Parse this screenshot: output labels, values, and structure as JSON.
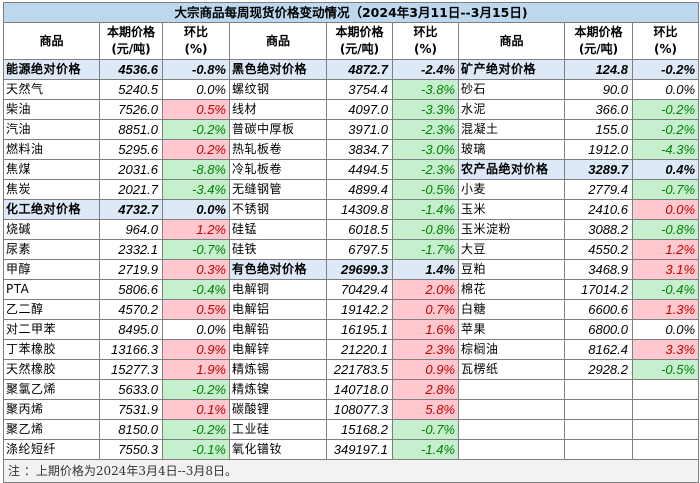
{
  "title": "大宗商品每周现货价格变动情况（2024年3月11日--3月15日)",
  "headers": {
    "name": "商品",
    "price_l1": "本期价格",
    "price_l2": "(元/吨)",
    "pct_l1": "环比",
    "pct_l2": "(%)"
  },
  "colors": {
    "title_bg": "#bdd7ee",
    "group_bg": "#dde9f6",
    "up_bg": "#ffc7ce",
    "up_text": "#c00000",
    "down_bg": "#c6efce",
    "down_text": "#008000"
  },
  "rows": [
    [
      {
        "n": "能源绝对价格",
        "p": "4536.6",
        "c": "-0.8%",
        "t": "group"
      },
      {
        "n": "黑色绝对价格",
        "p": "4872.7",
        "c": "-2.4%",
        "t": "group"
      },
      {
        "n": "矿产绝对价格",
        "p": "124.8",
        "c": "-0.2%",
        "t": "group"
      }
    ],
    [
      {
        "n": "天然气",
        "p": "5240.5",
        "c": "0.0%",
        "t": "flat"
      },
      {
        "n": "螺纹钢",
        "p": "3754.4",
        "c": "-3.8%",
        "t": "down"
      },
      {
        "n": "砂石",
        "p": "90.0",
        "c": "0.0%",
        "t": "flat"
      }
    ],
    [
      {
        "n": "柴油",
        "p": "7526.0",
        "c": "0.5%",
        "t": "up"
      },
      {
        "n": "线材",
        "p": "4097.0",
        "c": "-3.3%",
        "t": "down"
      },
      {
        "n": "水泥",
        "p": "366.0",
        "c": "-0.2%",
        "t": "down"
      }
    ],
    [
      {
        "n": "汽油",
        "p": "8851.0",
        "c": "-0.2%",
        "t": "down"
      },
      {
        "n": "普碳中厚板",
        "p": "3971.0",
        "c": "-2.3%",
        "t": "down"
      },
      {
        "n": "混凝土",
        "p": "155.0",
        "c": "-0.2%",
        "t": "down"
      }
    ],
    [
      {
        "n": "燃料油",
        "p": "5295.6",
        "c": "0.2%",
        "t": "up"
      },
      {
        "n": "热轧板卷",
        "p": "3834.7",
        "c": "-3.0%",
        "t": "down"
      },
      {
        "n": "玻璃",
        "p": "1912.0",
        "c": "-4.3%",
        "t": "down"
      }
    ],
    [
      {
        "n": "焦煤",
        "p": "2031.6",
        "c": "-8.8%",
        "t": "down"
      },
      {
        "n": "冷轧板卷",
        "p": "4494.5",
        "c": "-2.3%",
        "t": "down"
      },
      {
        "n": "农产品绝对价格",
        "p": "3289.7",
        "c": "0.4%",
        "t": "group"
      }
    ],
    [
      {
        "n": "焦炭",
        "p": "2021.7",
        "c": "-3.4%",
        "t": "down"
      },
      {
        "n": "无缝钢管",
        "p": "4899.4",
        "c": "-0.5%",
        "t": "down"
      },
      {
        "n": "小麦",
        "p": "2779.4",
        "c": "-0.7%",
        "t": "down"
      }
    ],
    [
      {
        "n": "化工绝对价格",
        "p": "4732.7",
        "c": "0.0%",
        "t": "group"
      },
      {
        "n": "不锈钢",
        "p": "14309.8",
        "c": "-1.4%",
        "t": "down"
      },
      {
        "n": "玉米",
        "p": "2410.6",
        "c": "0.0%",
        "t": "up"
      }
    ],
    [
      {
        "n": "烧碱",
        "p": "964.0",
        "c": "1.2%",
        "t": "up"
      },
      {
        "n": "硅锰",
        "p": "6018.5",
        "c": "-0.8%",
        "t": "down"
      },
      {
        "n": "玉米淀粉",
        "p": "3088.2",
        "c": "-0.8%",
        "t": "down"
      }
    ],
    [
      {
        "n": "尿素",
        "p": "2332.1",
        "c": "-0.7%",
        "t": "down"
      },
      {
        "n": "硅铁",
        "p": "6797.5",
        "c": "-1.7%",
        "t": "down"
      },
      {
        "n": "大豆",
        "p": "4550.2",
        "c": "1.2%",
        "t": "up"
      }
    ],
    [
      {
        "n": "甲醇",
        "p": "2719.9",
        "c": "0.3%",
        "t": "up"
      },
      {
        "n": "有色绝对价格",
        "p": "29699.3",
        "c": "1.4%",
        "t": "group"
      },
      {
        "n": "豆粕",
        "p": "3468.9",
        "c": "3.1%",
        "t": "up"
      }
    ],
    [
      {
        "n": "PTA",
        "p": "5806.6",
        "c": "-0.4%",
        "t": "down"
      },
      {
        "n": "电解铜",
        "p": "70429.4",
        "c": "2.0%",
        "t": "up"
      },
      {
        "n": "棉花",
        "p": "17014.2",
        "c": "-0.4%",
        "t": "down"
      }
    ],
    [
      {
        "n": "乙二醇",
        "p": "4570.2",
        "c": "0.5%",
        "t": "up"
      },
      {
        "n": "电解铝",
        "p": "19142.2",
        "c": "0.7%",
        "t": "up"
      },
      {
        "n": "白糖",
        "p": "6600.6",
        "c": "1.3%",
        "t": "up"
      }
    ],
    [
      {
        "n": "对二甲苯",
        "p": "8495.0",
        "c": "0.0%",
        "t": "flat"
      },
      {
        "n": "电解铅",
        "p": "16195.1",
        "c": "1.6%",
        "t": "up"
      },
      {
        "n": "苹果",
        "p": "6800.0",
        "c": "0.0%",
        "t": "flat"
      }
    ],
    [
      {
        "n": "丁苯橡胶",
        "p": "13166.3",
        "c": "0.9%",
        "t": "up"
      },
      {
        "n": "电解锌",
        "p": "21220.1",
        "c": "2.3%",
        "t": "up"
      },
      {
        "n": "棕榈油",
        "p": "8162.4",
        "c": "3.3%",
        "t": "up"
      }
    ],
    [
      {
        "n": "天然橡胶",
        "p": "15277.3",
        "c": "1.9%",
        "t": "up"
      },
      {
        "n": "精炼锡",
        "p": "221783.5",
        "c": "0.9%",
        "t": "up"
      },
      {
        "n": "瓦楞纸",
        "p": "2928.2",
        "c": "-0.5%",
        "t": "down"
      }
    ],
    [
      {
        "n": "聚氯乙烯",
        "p": "5633.0",
        "c": "-0.2%",
        "t": "down"
      },
      {
        "n": "精炼镍",
        "p": "140718.0",
        "c": "2.8%",
        "t": "up"
      },
      {
        "n": "",
        "p": "",
        "c": "",
        "t": "empty"
      }
    ],
    [
      {
        "n": "聚丙烯",
        "p": "7531.9",
        "c": "0.1%",
        "t": "up"
      },
      {
        "n": "碳酸锂",
        "p": "108077.3",
        "c": "5.8%",
        "t": "up"
      },
      {
        "n": "",
        "p": "",
        "c": "",
        "t": "empty"
      }
    ],
    [
      {
        "n": "聚乙烯",
        "p": "8150.0",
        "c": "-0.2%",
        "t": "down"
      },
      {
        "n": "工业硅",
        "p": "15168.2",
        "c": "-0.7%",
        "t": "down"
      },
      {
        "n": "",
        "p": "",
        "c": "",
        "t": "empty"
      }
    ],
    [
      {
        "n": "涤纶短纤",
        "p": "7550.3",
        "c": "-0.1%",
        "t": "down"
      },
      {
        "n": "氧化镨钕",
        "p": "349197.1",
        "c": "-1.4%",
        "t": "down"
      },
      {
        "n": "",
        "p": "",
        "c": "",
        "t": "empty"
      }
    ]
  ],
  "note": "注 ：上期价格为2024年3月4日--3月8日。"
}
